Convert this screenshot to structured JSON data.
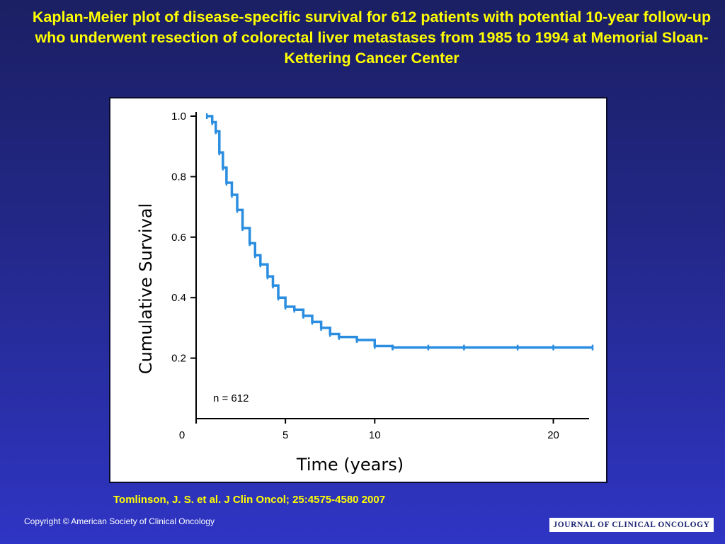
{
  "slide": {
    "title": "Kaplan-Meier plot of disease-specific survival for 612 patients with potential 10-year follow-up who underwent resection of colorectal liver metastases from 1985 to 1994 at Memorial Sloan-Kettering Cancer Center",
    "citation": "Tomlinson, J. S. et al. J Clin Oncol; 25:4575-4580 2007",
    "copyright": "Copyright © American Society of Clinical Oncology",
    "journal_logo": "JOURNAL OF CLINICAL ONCOLOGY"
  },
  "colors": {
    "background_top": "#1b1f63",
    "background_bottom": "#2f35c4",
    "title_text": "#ffff00",
    "series_line": "#2a8de0",
    "axis": "#000000"
  },
  "chart_data": {
    "type": "line",
    "xlabel": "Time (years)",
    "ylabel": "Cumulative Survival",
    "xlim": [
      0,
      22
    ],
    "ylim": [
      0,
      1.0
    ],
    "x_ticks": [
      0,
      5,
      10,
      20
    ],
    "y_ticks": [
      0.2,
      0.4,
      0.6,
      0.8,
      1.0
    ],
    "x_tick_labels": [
      "0",
      "5",
      "10",
      "20"
    ],
    "y_tick_labels": [
      "0.2",
      "0.4",
      "0.6",
      "0.8",
      "1.0"
    ],
    "annotation": "n = 612",
    "grid": false,
    "legend": "none",
    "series": [
      {
        "step": true,
        "censor_marks": true,
        "x": [
          0.6,
          0.9,
          1.1,
          1.3,
          1.5,
          1.7,
          2.0,
          2.3,
          2.6,
          3.0,
          3.3,
          3.6,
          4.0,
          4.3,
          4.6,
          5.0,
          5.5,
          6.0,
          6.5,
          7.0,
          7.5,
          8.0,
          9.0,
          10.0,
          11.0,
          13.0,
          15.0,
          18.0,
          20.0,
          22.2
        ],
        "y": [
          1.0,
          0.98,
          0.95,
          0.88,
          0.83,
          0.78,
          0.74,
          0.69,
          0.63,
          0.58,
          0.54,
          0.51,
          0.47,
          0.44,
          0.4,
          0.37,
          0.36,
          0.34,
          0.32,
          0.3,
          0.28,
          0.27,
          0.26,
          0.24,
          0.235,
          0.235,
          0.235,
          0.235,
          0.235,
          0.235
        ]
      }
    ]
  }
}
